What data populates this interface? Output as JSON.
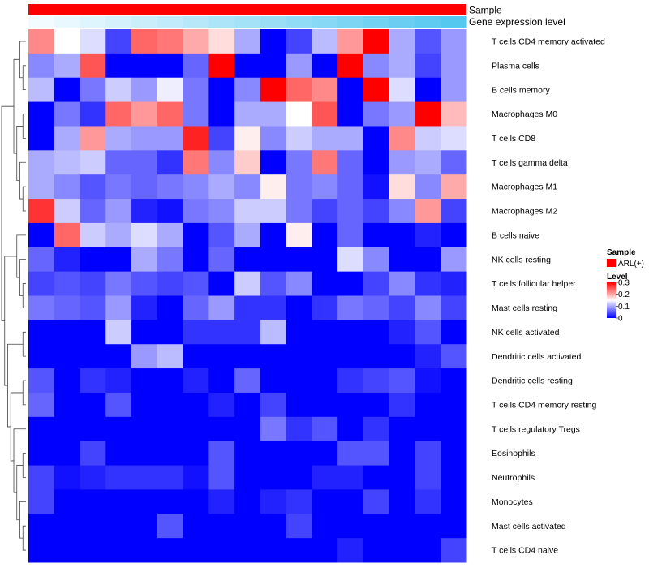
{
  "chart_data": {
    "type": "heatmap",
    "rows": [
      "T cells CD4 memory activated",
      "Plasma cells",
      "B cells memory",
      "Macrophages M0",
      "T cells CD8",
      "T cells gamma delta",
      "Macrophages M1",
      "Macrophages M2",
      "B cells naive",
      "NK cells resting",
      "T cells follicular helper",
      "Mast cells resting",
      "NK cells activated",
      "Dendritic cells activated",
      "Dendritic cells resting",
      "T cells CD4 memory resting",
      "T cells regulatory  Tregs",
      "Eosinophils",
      "Neutrophils",
      "Monocytes",
      "Mast cells activated",
      "T cells CD4 naive"
    ],
    "values": [
      [
        0.22,
        0.15,
        0.13,
        0.04,
        0.24,
        0.23,
        0.2,
        0.17,
        0.1,
        0.0,
        0.04,
        0.11,
        0.21,
        0.3,
        0.1,
        0.05,
        0.09
      ],
      [
        0.08,
        0.1,
        0.25,
        0.0,
        0.0,
        0.0,
        0.06,
        0.31,
        0.0,
        0.0,
        0.09,
        0.0,
        0.31,
        0.08,
        0.1,
        0.04,
        0.09
      ],
      [
        0.11,
        0.0,
        0.07,
        0.12,
        0.09,
        0.14,
        0.07,
        0.0,
        0.08,
        0.32,
        0.24,
        0.22,
        0.0,
        0.32,
        0.13,
        0.0,
        0.09
      ],
      [
        0.0,
        0.07,
        0.03,
        0.24,
        0.21,
        0.24,
        0.07,
        0.0,
        0.1,
        0.1,
        0.15,
        0.25,
        0.0,
        0.07,
        0.09,
        0.32,
        0.19
      ],
      [
        0.0,
        0.1,
        0.21,
        0.1,
        0.09,
        0.09,
        0.28,
        0.04,
        0.16,
        0.08,
        0.12,
        0.1,
        0.1,
        0.0,
        0.22,
        0.12,
        0.13
      ],
      [
        0.1,
        0.11,
        0.12,
        0.06,
        0.06,
        0.03,
        0.23,
        0.08,
        0.18,
        0.0,
        0.07,
        0.23,
        0.06,
        0.0,
        0.09,
        0.1,
        0.06
      ],
      [
        0.1,
        0.08,
        0.05,
        0.07,
        0.06,
        0.07,
        0.08,
        0.1,
        0.08,
        0.16,
        0.07,
        0.08,
        0.06,
        0.01,
        0.17,
        0.08,
        0.2
      ],
      [
        0.27,
        0.12,
        0.06,
        0.09,
        0.02,
        0.01,
        0.07,
        0.08,
        0.12,
        0.12,
        0.07,
        0.04,
        0.06,
        0.04,
        0.08,
        0.21,
        0.04
      ],
      [
        0.0,
        0.24,
        0.12,
        0.1,
        0.13,
        0.1,
        0.0,
        0.05,
        0.1,
        0.0,
        0.16,
        0.0,
        0.06,
        0.0,
        0.0,
        0.02,
        0.0
      ],
      [
        0.06,
        0.02,
        0.0,
        0.0,
        0.1,
        0.07,
        0.0,
        0.06,
        0.0,
        0.0,
        0.0,
        0.0,
        0.13,
        0.08,
        0.0,
        0.0,
        0.09
      ],
      [
        0.04,
        0.05,
        0.04,
        0.07,
        0.05,
        0.04,
        0.05,
        0.0,
        0.12,
        0.05,
        0.08,
        0.0,
        0.0,
        0.04,
        0.08,
        0.03,
        0.02
      ],
      [
        0.07,
        0.06,
        0.05,
        0.09,
        0.02,
        0.0,
        0.06,
        0.09,
        0.03,
        0.03,
        0.0,
        0.03,
        0.07,
        0.06,
        0.04,
        0.08,
        0.04
      ],
      [
        0.0,
        0.0,
        0.0,
        0.12,
        0.0,
        0.0,
        0.03,
        0.03,
        0.03,
        0.11,
        0.0,
        0.0,
        0.0,
        0.0,
        0.02,
        0.05,
        0.0
      ],
      [
        0.0,
        0.0,
        0.0,
        0.0,
        0.09,
        0.11,
        0.0,
        0.0,
        0.0,
        0.0,
        0.0,
        0.0,
        0.0,
        0.0,
        0.0,
        0.02,
        0.05
      ],
      [
        0.05,
        0.0,
        0.03,
        0.02,
        0.0,
        0.0,
        0.02,
        0.0,
        0.06,
        0.0,
        0.0,
        0.0,
        0.03,
        0.04,
        0.05,
        0.01,
        0.0
      ],
      [
        0.06,
        0.0,
        0.0,
        0.05,
        0.0,
        0.0,
        0.0,
        0.02,
        0.0,
        0.04,
        0.0,
        0.0,
        0.0,
        0.0,
        0.03,
        0.0,
        0.0
      ],
      [
        0.0,
        0.0,
        0.0,
        0.0,
        0.0,
        0.0,
        0.0,
        0.0,
        0.0,
        0.07,
        0.03,
        0.05,
        0.0,
        0.03,
        0.0,
        0.0,
        0.0
      ],
      [
        0.0,
        0.0,
        0.04,
        0.0,
        0.0,
        0.0,
        0.0,
        0.05,
        0.0,
        0.0,
        0.0,
        0.0,
        0.05,
        0.05,
        0.0,
        0.04,
        0.0
      ],
      [
        0.04,
        0.01,
        0.02,
        0.03,
        0.03,
        0.03,
        0.01,
        0.05,
        0.0,
        0.0,
        0.0,
        0.02,
        0.02,
        0.0,
        0.0,
        0.04,
        0.0
      ],
      [
        0.04,
        0.0,
        0.0,
        0.0,
        0.0,
        0.0,
        0.0,
        0.02,
        0.0,
        0.02,
        0.03,
        0.0,
        0.0,
        0.04,
        0.0,
        0.03,
        0.0
      ],
      [
        0.0,
        0.0,
        0.0,
        0.0,
        0.0,
        0.05,
        0.0,
        0.0,
        0.0,
        0.0,
        0.04,
        0.0,
        0.0,
        0.0,
        0.0,
        0.0,
        0.0
      ],
      [
        0.0,
        0.0,
        0.0,
        0.0,
        0.0,
        0.0,
        0.0,
        0.0,
        0.0,
        0.0,
        0.0,
        0.0,
        0.02,
        0.0,
        0.0,
        0.0,
        0.04
      ]
    ],
    "color_scale": {
      "min": 0,
      "max": 0.3,
      "low_color": "#0000ff",
      "mid_color": "#ffffff",
      "high_color": "#ff0000",
      "mid_value": 0.15
    },
    "annotations": {
      "sample": {
        "label": "Sample",
        "color": "#ff0000",
        "legend_entry": "ARL(+)"
      },
      "gene_expression": {
        "label": "Gene expression level",
        "low_color": "#f2fbff",
        "high_color": "#55c8ef"
      }
    },
    "legend": {
      "sample_title": "Sample",
      "sample_entry": "ARL(+)",
      "level_title": "Level",
      "ticks": [
        "0.3",
        "0.2",
        "0.1",
        "0"
      ],
      "tick_values": [
        0.3,
        0.2,
        0.1,
        0
      ]
    },
    "dendrogram": "row dendrogram on left"
  }
}
